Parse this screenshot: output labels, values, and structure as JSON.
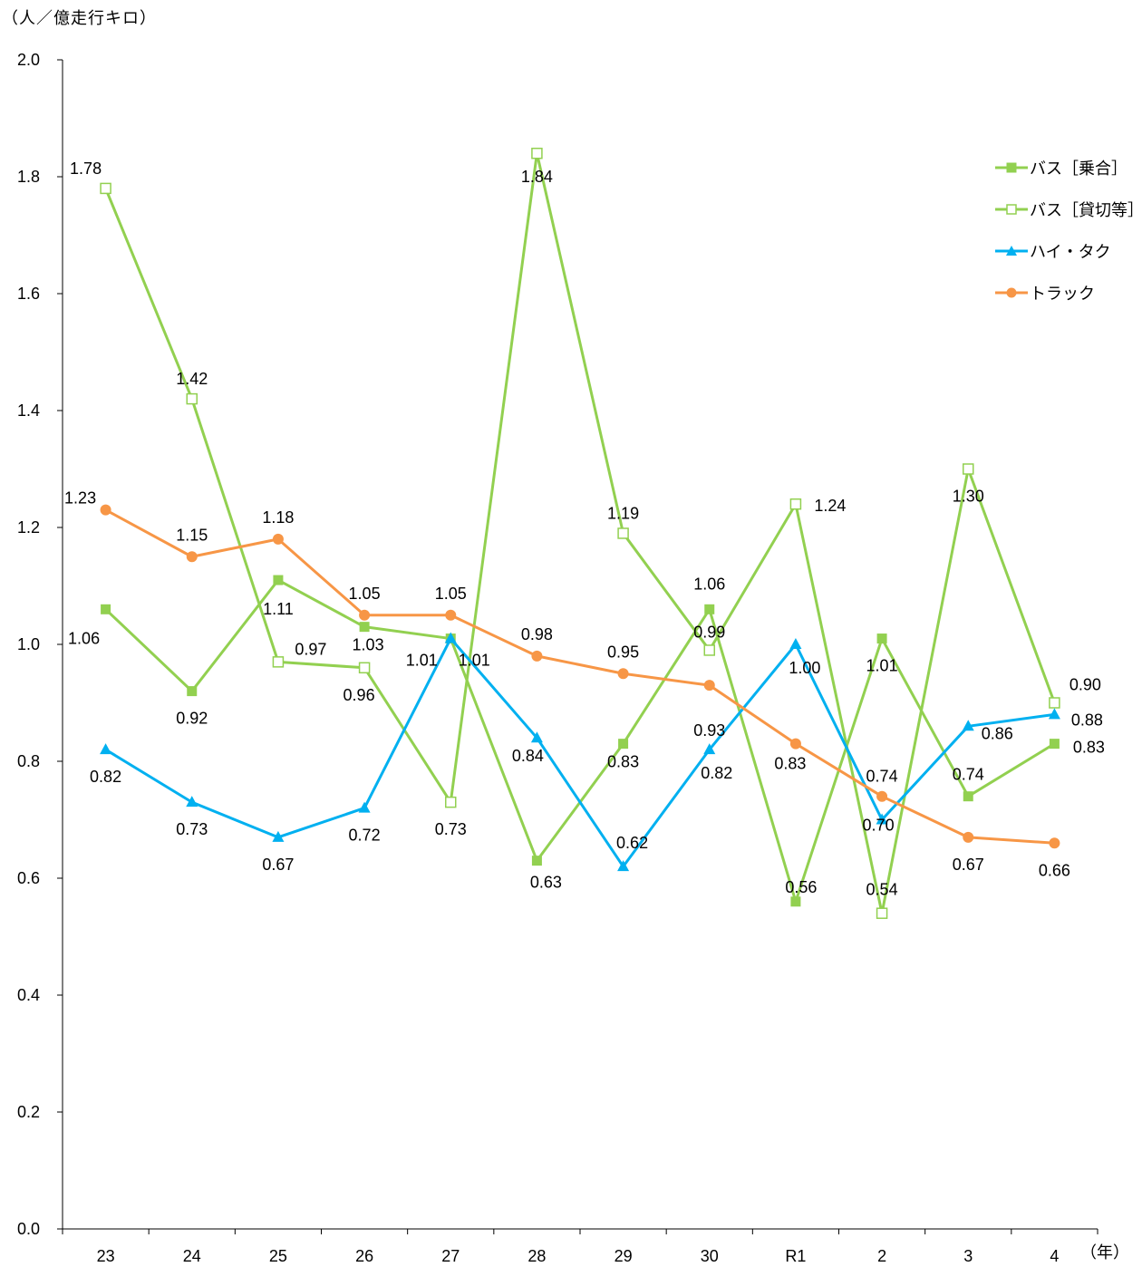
{
  "chart_data": {
    "type": "line",
    "ylabel": "（人／億走行キロ）",
    "xlabel": "（年）",
    "ylim": [
      0.0,
      2.0
    ],
    "yticks": [
      "0.0",
      "0.2",
      "0.4",
      "0.6",
      "0.8",
      "1.0",
      "1.2",
      "1.4",
      "1.6",
      "1.8",
      "2.0"
    ],
    "categories": [
      "23",
      "24",
      "25",
      "26",
      "27",
      "28",
      "29",
      "30",
      "R1",
      "2",
      "3",
      "4"
    ],
    "legend_position": "top-right",
    "grid": false,
    "series": [
      {
        "name": "バス［乗合］",
        "color": "#92d050",
        "marker": "square-filled",
        "values": [
          1.06,
          0.92,
          1.11,
          1.03,
          1.01,
          0.63,
          0.83,
          1.06,
          0.56,
          1.01,
          0.74,
          0.83
        ],
        "labels": [
          "1.06",
          "0.92",
          "1.11",
          "1.03",
          "1.01",
          "0.63",
          "0.83",
          "1.06",
          "0.56",
          "1.01",
          "0.74",
          "0.83"
        ]
      },
      {
        "name": "バス［貸切等］",
        "color": "#92d050",
        "marker": "square-open",
        "values": [
          1.78,
          1.42,
          0.97,
          0.96,
          0.73,
          1.84,
          1.19,
          0.99,
          1.24,
          0.54,
          1.3,
          0.9
        ],
        "labels": [
          "1.78",
          "1.42",
          "0.97",
          "0.96",
          "0.73",
          "1.84",
          "1.19",
          "0.99",
          "1.24",
          "0.54",
          "1.30",
          "0.90"
        ]
      },
      {
        "name": "ハイ・タク",
        "color": "#00b0f0",
        "marker": "triangle",
        "values": [
          0.82,
          0.73,
          0.67,
          0.72,
          1.01,
          0.84,
          0.62,
          0.82,
          1.0,
          0.7,
          0.86,
          0.88
        ],
        "labels": [
          "0.82",
          "0.73",
          "0.67",
          "0.72",
          "1.01",
          "0.84",
          "0.62",
          "0.82",
          "1.00",
          "0.70",
          "0.86",
          "0.88"
        ]
      },
      {
        "name": "トラック",
        "color": "#f79646",
        "marker": "circle",
        "values": [
          1.23,
          1.15,
          1.18,
          1.05,
          1.05,
          0.98,
          0.95,
          0.93,
          0.83,
          0.74,
          0.67,
          0.66
        ],
        "labels": [
          "1.23",
          "1.15",
          "1.18",
          "1.05",
          "1.05",
          "0.98",
          "0.95",
          "0.93",
          "0.83",
          "0.74",
          "0.67",
          "0.66"
        ]
      }
    ]
  }
}
